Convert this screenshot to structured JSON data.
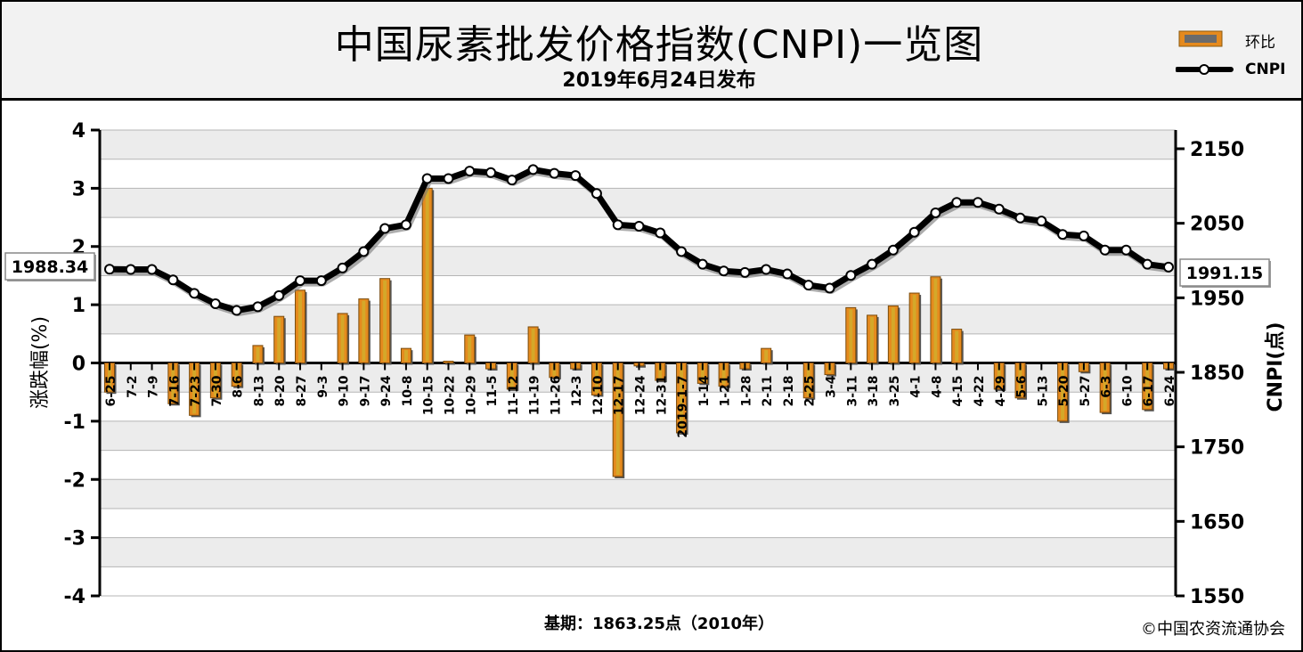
{
  "header": {
    "title": "中国尿素批发价格指数(CNPI)一览图",
    "subtitle": "2019年6月24日发布"
  },
  "legend": {
    "bar_label": "环比",
    "line_label": "CNPI"
  },
  "footer": {
    "base_period": "基期：1863.25点（2010年）",
    "copyright": "©中国农资流通协会"
  },
  "colors": {
    "bar_fill": "#e58a1e",
    "bar_core": "#d4a82a",
    "line": "#000000",
    "band": "#ececec"
  },
  "chart_data": {
    "type": "bar+line",
    "categories": [
      "6-25",
      "7-2",
      "7-9",
      "7-16",
      "7-23",
      "7-30",
      "8-6",
      "8-13",
      "8-20",
      "8-27",
      "9-3",
      "9-10",
      "9-17",
      "9-24",
      "10-8",
      "10-15",
      "10-22",
      "10-29",
      "11-5",
      "11-12",
      "11-19",
      "11-26",
      "12-3",
      "12-10",
      "12-17",
      "12-24",
      "12-31",
      "2019-1-7",
      "1-14",
      "1-21",
      "1-28",
      "2-11",
      "2-18",
      "2-25",
      "3-4",
      "3-11",
      "3-18",
      "3-25",
      "4-1",
      "4-8",
      "4-15",
      "4-22",
      "4-29",
      "5-6",
      "5-13",
      "5-20",
      "5-27",
      "6-3",
      "6-10",
      "6-17",
      "6-24"
    ],
    "series": [
      {
        "name": "环比",
        "axis": "left",
        "values": [
          -0.5,
          0.0,
          0.0,
          -0.7,
          -0.9,
          -0.6,
          -0.4,
          0.3,
          0.8,
          1.25,
          0.0,
          0.85,
          1.1,
          1.45,
          0.25,
          3.0,
          0.03,
          0.48,
          -0.1,
          -0.45,
          0.62,
          -0.25,
          -0.1,
          -0.55,
          -1.95,
          -0.05,
          -0.3,
          -1.2,
          -0.35,
          -0.4,
          -0.1,
          0.25,
          0.0,
          -0.6,
          -0.2,
          0.95,
          0.82,
          0.98,
          1.2,
          1.48,
          0.58,
          0.0,
          -0.45,
          -0.6,
          0.0,
          -1.0,
          -0.15,
          -0.85,
          0.0,
          -0.8,
          -0.1
        ]
      },
      {
        "name": "CNPI",
        "axis": "right",
        "values": [
          1988.34,
          1988,
          1988,
          1974,
          1956,
          1942,
          1933,
          1938,
          1953,
          1973,
          1973,
          1990,
          2012,
          2043,
          2048,
          2110,
          2110,
          2120,
          2118,
          2108,
          2122,
          2117,
          2114,
          2090,
          2048,
          2046,
          2037,
          2012,
          1995,
          1986,
          1984,
          1988,
          1982,
          1967,
          1963,
          1980,
          1995,
          2014,
          2038,
          2064,
          2078,
          2078,
          2069,
          2057,
          2053,
          2035,
          2033,
          2014,
          2014,
          1995,
          1991.15
        ]
      }
    ],
    "y_left": {
      "label": "涨跌幅(%)",
      "ylim": [
        -4,
        4
      ],
      "ticks": [
        -4,
        -3,
        -2,
        -1,
        0,
        1,
        2,
        3,
        4
      ]
    },
    "y_right": {
      "label": "CNPI(点)",
      "ylim": [
        1550,
        2150
      ],
      "ticks": [
        1550,
        1650,
        1750,
        1850,
        1950,
        2050,
        2150
      ]
    },
    "annotations": {
      "start_value": "1988.34",
      "end_value": "1991.15"
    }
  }
}
